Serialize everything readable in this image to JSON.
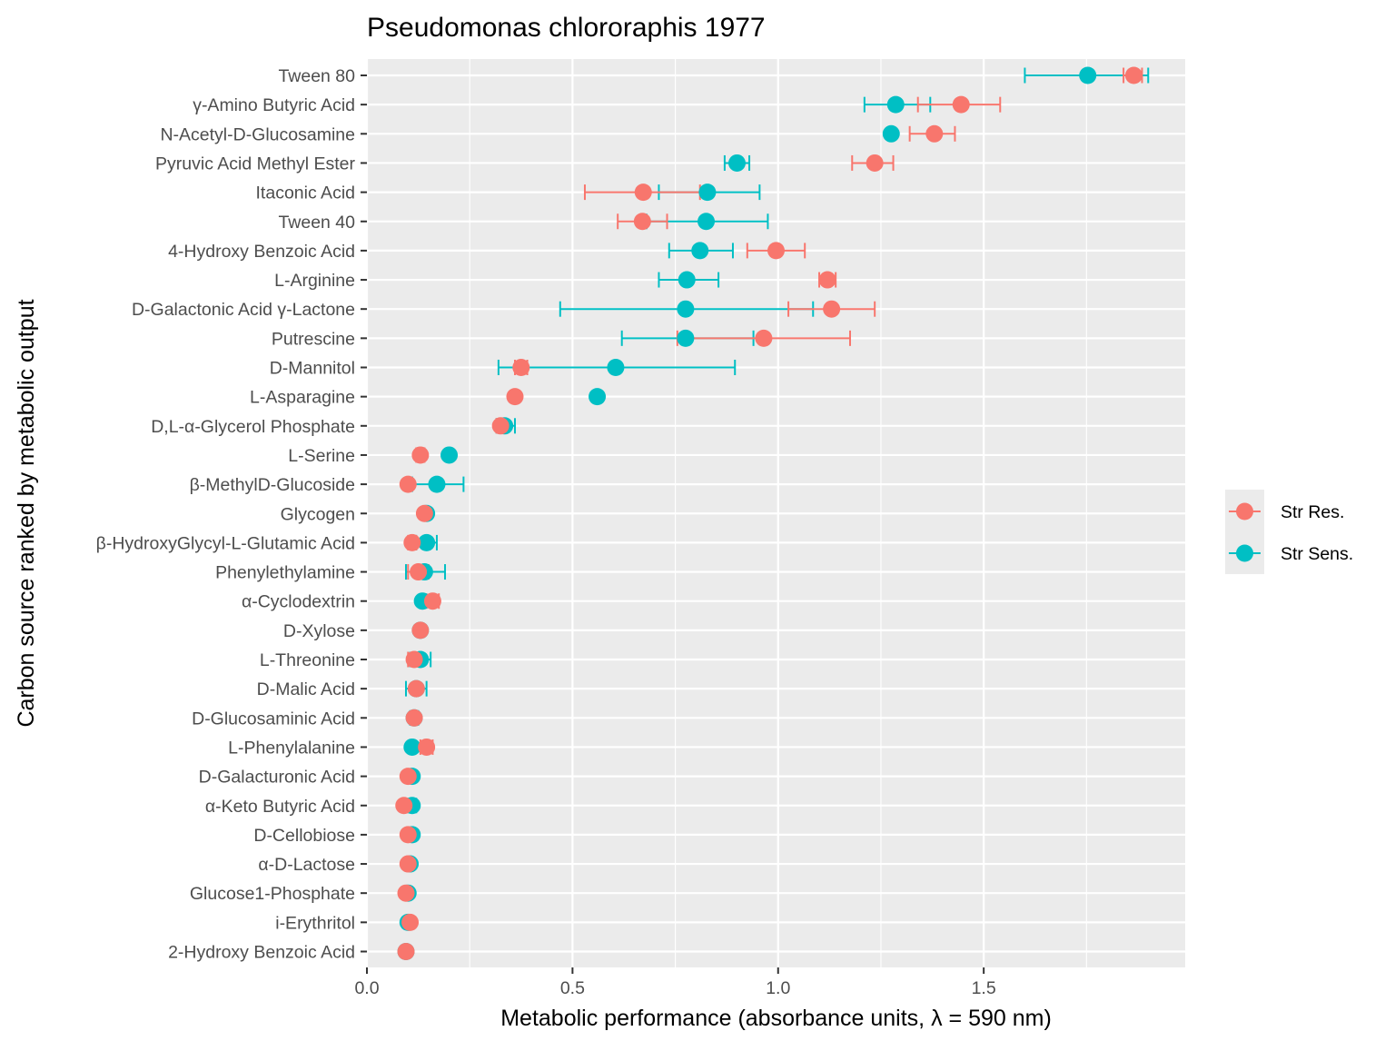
{
  "chart_data": {
    "type": "scatter",
    "title": "Pseudomonas chlororaphis 1977",
    "xlabel": "Metabolic performance (absorbance units, λ = 590 nm)",
    "ylabel": "Carbon source ranked by metabolic output",
    "xlim": [
      0,
      1.99
    ],
    "x_ticks": [
      0,
      0.5,
      1,
      1.5
    ],
    "x_tick_labels": [
      "0.0",
      "0.5",
      "1.0",
      "1.5"
    ],
    "grid": true,
    "legend_position": "right",
    "categories": [
      "Tween 80",
      "γ-Amino Butyric Acid",
      "N-Acetyl-D-Glucosamine",
      "Pyruvic Acid Methyl Ester",
      "Itaconic Acid",
      "Tween 40",
      "4-Hydroxy Benzoic Acid",
      "L-Arginine",
      "D-Galactonic Acid γ-Lactone",
      "Putrescine",
      "D-Mannitol",
      "L-Asparagine",
      "D,L-α-Glycerol Phosphate",
      "L-Serine",
      "β-MethylD-Glucoside",
      "Glycogen",
      "β-HydroxyGlycyl-L-Glutamic Acid",
      "Phenylethylamine",
      "α-Cyclodextrin",
      "D-Xylose",
      "L-Threonine",
      "D-Malic Acid",
      "D-Glucosaminic Acid",
      "L-Phenylalanine",
      "D-Galacturonic Acid",
      "α-Keto Butyric Acid",
      "D-Cellobiose",
      "α-D-Lactose",
      "Glucose1-Phosphate",
      "i-Erythritol",
      "2-Hydroxy Benzoic Acid"
    ],
    "series": [
      {
        "name": "Str Sens.",
        "color": "#00BFC4",
        "values": [
          1.753,
          1.286,
          1.275,
          0.9,
          0.828,
          0.825,
          0.81,
          0.778,
          0.775,
          0.775,
          0.605,
          0.56,
          0.335,
          0.2,
          0.17,
          0.145,
          0.145,
          0.14,
          0.135,
          0.13,
          0.13,
          0.12,
          0.115,
          0.11,
          0.11,
          0.11,
          0.11,
          0.105,
          0.1,
          0.1,
          0.095
        ],
        "lower": [
          1.6,
          1.21,
          1.27,
          0.87,
          0.71,
          0.68,
          0.735,
          0.71,
          0.47,
          0.62,
          0.32,
          0.555,
          0.315,
          0.195,
          0.11,
          0.14,
          0.12,
          0.095,
          0.13,
          0.125,
          0.105,
          0.095,
          0.105,
          0.105,
          0.105,
          0.1,
          0.105,
          0.1,
          0.1,
          0.1,
          0.09
        ],
        "upper": [
          1.9,
          1.37,
          1.28,
          0.93,
          0.955,
          0.975,
          0.89,
          0.855,
          1.085,
          0.94,
          0.895,
          0.565,
          0.36,
          0.205,
          0.235,
          0.15,
          0.17,
          0.19,
          0.14,
          0.135,
          0.155,
          0.145,
          0.125,
          0.115,
          0.115,
          0.12,
          0.115,
          0.11,
          0.1,
          0.1,
          0.1
        ]
      },
      {
        "name": "Str Res.",
        "color": "#F8766D",
        "values": [
          1.865,
          1.445,
          1.38,
          1.235,
          0.672,
          0.67,
          0.995,
          1.12,
          1.13,
          0.965,
          0.375,
          0.36,
          0.325,
          0.13,
          0.1,
          0.14,
          0.11,
          0.125,
          0.16,
          0.13,
          0.115,
          0.12,
          0.115,
          0.145,
          0.1,
          0.09,
          0.1,
          0.1,
          0.095,
          0.105,
          0.095
        ],
        "lower": [
          1.84,
          1.34,
          1.32,
          1.18,
          0.53,
          0.61,
          0.925,
          1.1,
          1.025,
          0.755,
          0.36,
          0.355,
          0.315,
          0.12,
          0.095,
          0.135,
          0.1,
          0.1,
          0.145,
          0.125,
          0.1,
          0.115,
          0.11,
          0.13,
          0.095,
          0.085,
          0.095,
          0.095,
          0.09,
          0.1,
          0.09
        ],
        "upper": [
          1.885,
          1.54,
          1.43,
          1.28,
          0.81,
          0.73,
          1.065,
          1.14,
          1.235,
          1.175,
          0.39,
          0.365,
          0.335,
          0.14,
          0.105,
          0.145,
          0.12,
          0.15,
          0.175,
          0.135,
          0.13,
          0.125,
          0.12,
          0.16,
          0.105,
          0.095,
          0.105,
          0.105,
          0.1,
          0.11,
          0.1
        ]
      }
    ],
    "legend": [
      "Str Res.",
      "Str Sens."
    ]
  }
}
